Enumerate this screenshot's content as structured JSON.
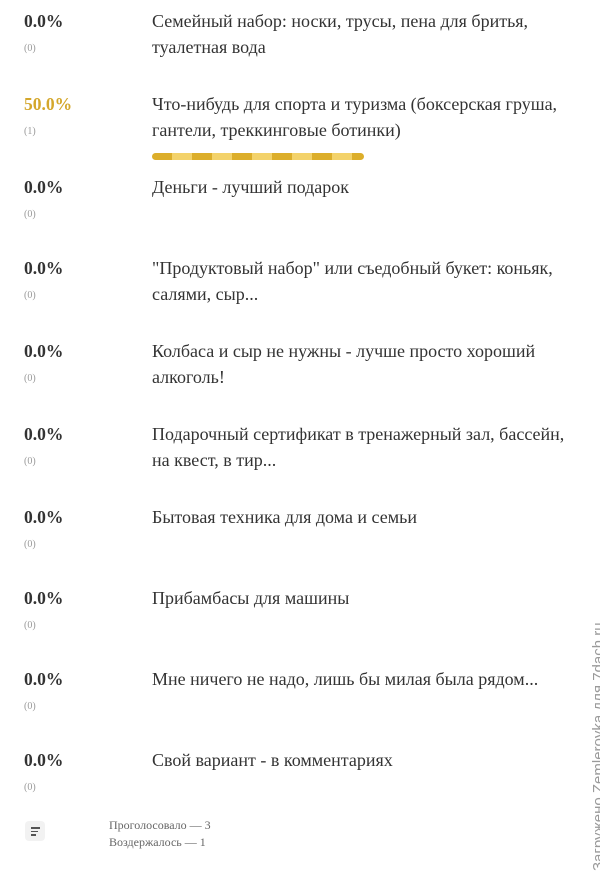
{
  "poll": {
    "options": [
      {
        "percent": "0.0%",
        "count": "(0)",
        "text": "Семейный набор: носки, трусы, пена для бритья, туалетная вода"
      },
      {
        "percent": "50.0%",
        "count": "(1)",
        "text": "Что-нибудь для спорта и туризма (боксерская груша, гантели, треккинговые ботинки)"
      },
      {
        "percent": "0.0%",
        "count": "(0)",
        "text": "Деньги - лучший подарок"
      },
      {
        "percent": "0.0%",
        "count": "(0)",
        "text": "\"Продуктовый набор\" или съедобный букет: коньяк, салями, сыр..."
      },
      {
        "percent": "0.0%",
        "count": "(0)",
        "text": "Колбаса и сыр не нужны - лучше просто хороший алкоголь!"
      },
      {
        "percent": "0.0%",
        "count": "(0)",
        "text": "Подарочный сертификат в тренажерный зал, бассейн, на квест, в тир..."
      },
      {
        "percent": "0.0%",
        "count": "(0)",
        "text": "Бытовая техника для дома и семьи"
      },
      {
        "percent": "0.0%",
        "count": "(0)",
        "text": "Прибамбасы для машины"
      },
      {
        "percent": "0.0%",
        "count": "(0)",
        "text": "Мне ничего не надо, лишь бы милая была рядом..."
      },
      {
        "percent": "0.0%",
        "count": "(0)",
        "text": "Свой вариант - в комментариях"
      }
    ],
    "voted": "Проголосовало — 3",
    "abstained": "Воздержалось — 1"
  },
  "watermark": "Загружено Zemleroyka для 7dach.ru"
}
